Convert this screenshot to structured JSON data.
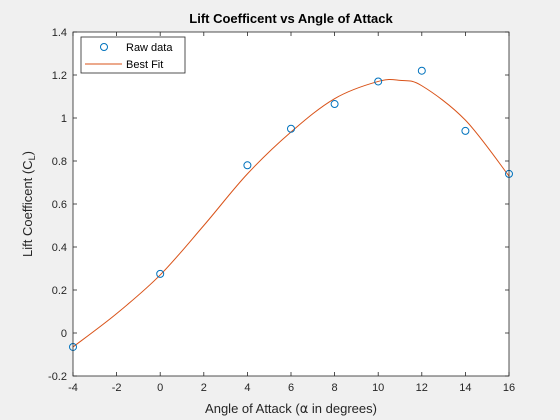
{
  "chart_data": {
    "type": "scatter",
    "title": "Lift Coefficent vs Angle of Attack",
    "xlabel_pre": "Angle of Attack (",
    "xlabel_symbol": "α",
    "xlabel_post": " in degrees)",
    "ylabel_main": "Lift Coefficent (C",
    "ylabel_sub": "L",
    "ylabel_close": ")",
    "xlim": [
      -4,
      16
    ],
    "ylim": [
      -0.2,
      1.4
    ],
    "xticks": [
      -4,
      -2,
      0,
      2,
      4,
      6,
      8,
      10,
      12,
      14,
      16
    ],
    "yticks": [
      -0.2,
      0,
      0.2,
      0.4,
      0.6,
      0.8,
      1,
      1.2,
      1.4
    ],
    "xtick_labels": [
      "-4",
      "-2",
      "0",
      "2",
      "4",
      "6",
      "8",
      "10",
      "12",
      "14",
      "16"
    ],
    "ytick_labels": [
      "-0.2",
      "0",
      "0.2",
      "0.4",
      "0.6",
      "0.8",
      "1",
      "1.2",
      "1.4"
    ],
    "grid": false,
    "legend_position": "top-left",
    "series": [
      {
        "name": "Raw data",
        "kind": "markers",
        "color": "#0072bd",
        "x": [
          -4,
          0,
          4,
          6,
          8,
          10,
          12,
          14,
          16
        ],
        "y": [
          -0.065,
          0.275,
          0.78,
          0.95,
          1.065,
          1.17,
          1.22,
          0.94,
          0.74
        ]
      },
      {
        "name": "Best Fit",
        "kind": "line",
        "color": "#d95319",
        "x": [
          -4,
          -2,
          0,
          2,
          4,
          6,
          8,
          10,
          11,
          12,
          14,
          16
        ],
        "y": [
          -0.065,
          0.09,
          0.27,
          0.5,
          0.74,
          0.935,
          1.09,
          1.17,
          1.175,
          1.15,
          0.99,
          0.73
        ]
      }
    ]
  }
}
